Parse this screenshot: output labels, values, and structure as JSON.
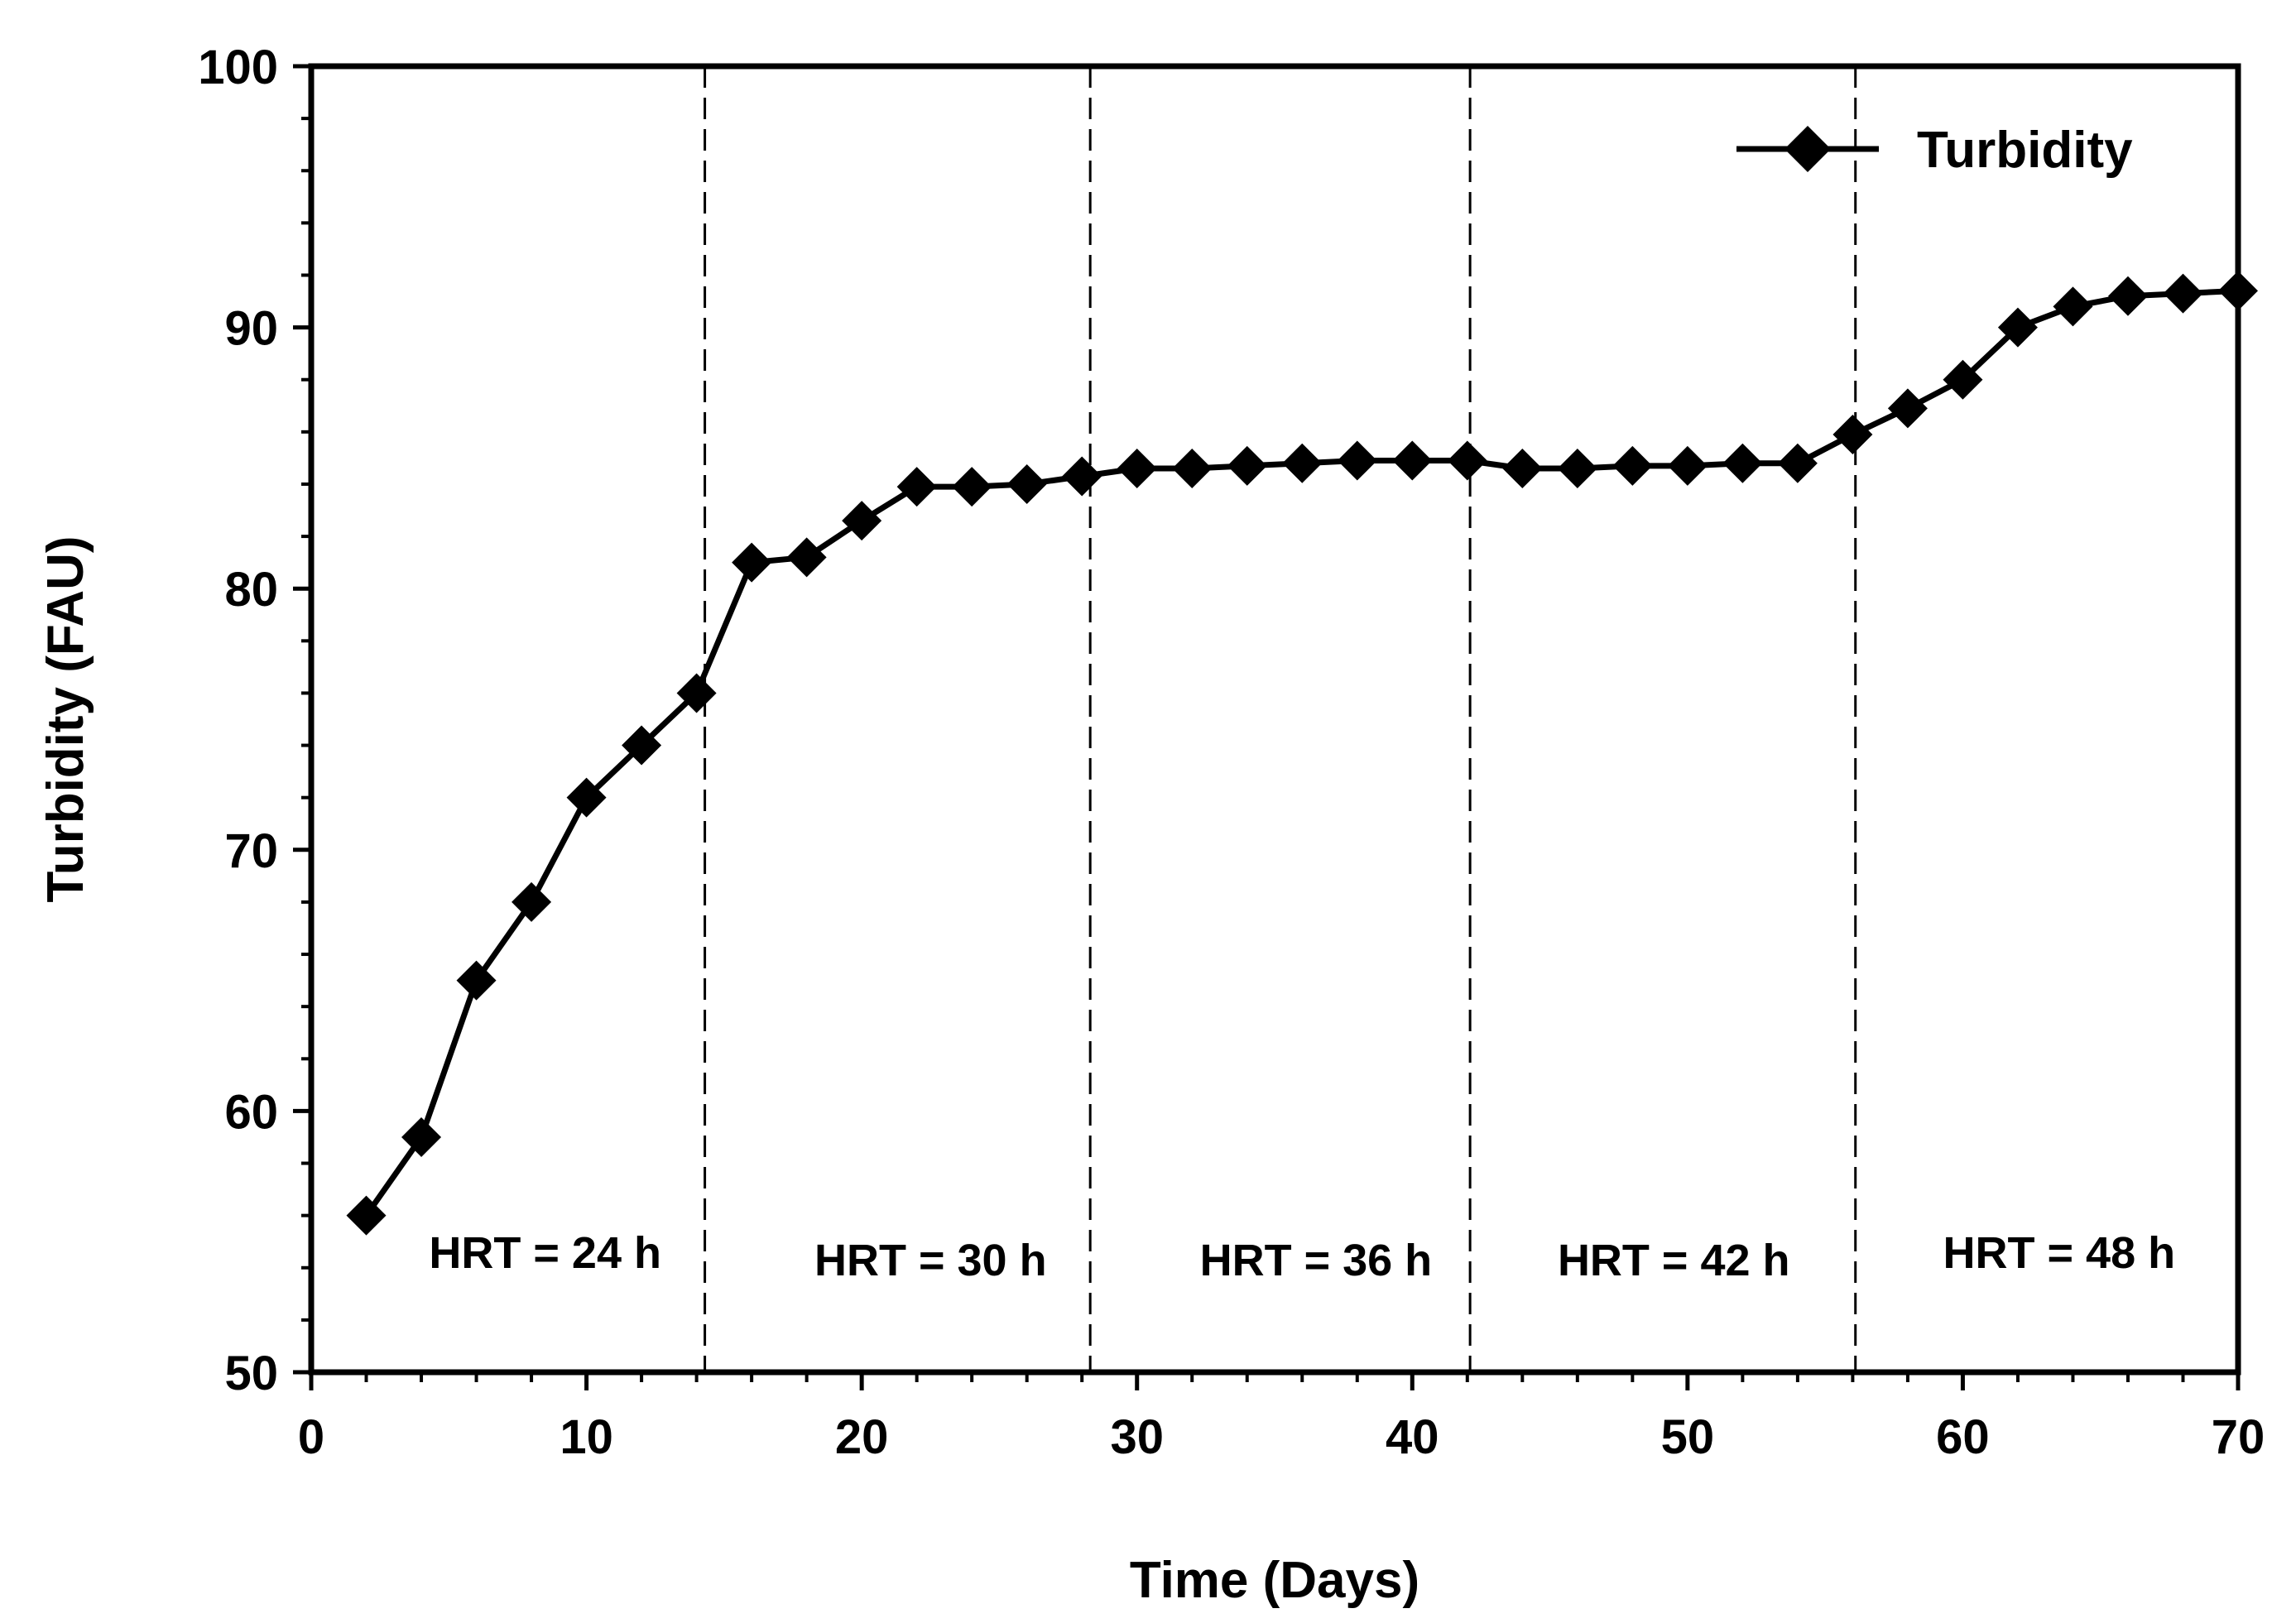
{
  "chart_data": {
    "type": "line",
    "title": "",
    "xlabel": "Time (Days)",
    "ylabel": "Turbidity (FAU)",
    "xlim": [
      0,
      70
    ],
    "ylim": [
      50,
      100
    ],
    "x_ticks": [
      0,
      10,
      20,
      30,
      40,
      50,
      60,
      70
    ],
    "y_ticks": [
      50,
      60,
      70,
      80,
      90,
      100
    ],
    "grid": false,
    "legend_position": "top-right",
    "series": [
      {
        "name": "Turbidity",
        "color": "#000000",
        "marker": "diamond",
        "x": [
          2,
          4,
          6,
          8,
          10,
          12,
          14,
          16,
          18,
          20,
          22,
          24,
          26,
          28,
          30,
          32,
          34,
          36,
          38,
          40,
          42,
          44,
          46,
          48,
          50,
          52,
          54,
          56,
          58,
          60,
          62,
          64,
          66,
          68,
          70
        ],
        "y": [
          56,
          59,
          65,
          68,
          72,
          74,
          76,
          81,
          81.2,
          82.6,
          83.9,
          83.9,
          84,
          84.3,
          84.6,
          84.6,
          84.7,
          84.8,
          84.9,
          84.9,
          84.9,
          84.6,
          84.6,
          84.7,
          84.7,
          84.8,
          84.8,
          85.9,
          86.9,
          88,
          90,
          90.8,
          91.2,
          91.3,
          91.4
        ]
      }
    ],
    "phase_dividers": [
      14.3,
      28.3,
      42.1,
      56.1
    ],
    "annotations": [
      {
        "text": "HRT = 24 h",
        "x": 8.5,
        "y": 54
      },
      {
        "text": "HRT = 30 h",
        "x": 22.5,
        "y": 53.7
      },
      {
        "text": "HRT = 36 h",
        "x": 36.5,
        "y": 53.7
      },
      {
        "text": "HRT = 42 h",
        "x": 49.5,
        "y": 53.7
      },
      {
        "text": "HRT = 48 h",
        "x": 63.5,
        "y": 54
      }
    ]
  }
}
